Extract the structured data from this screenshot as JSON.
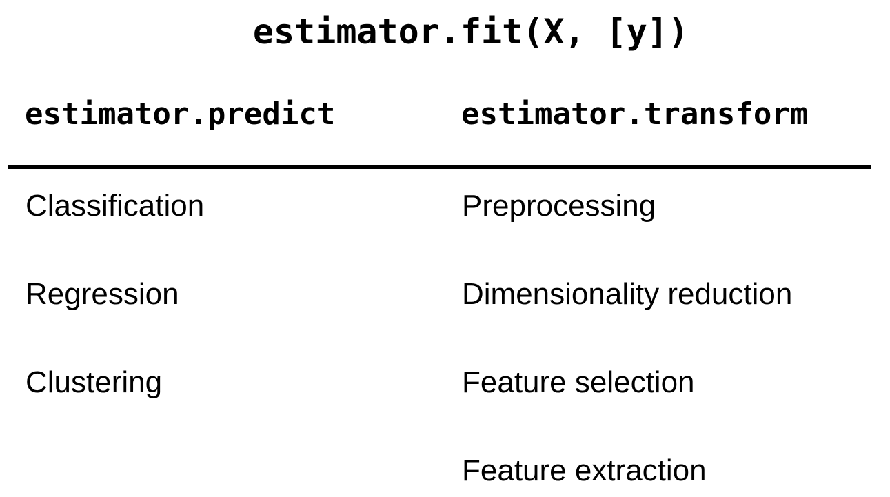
{
  "title": "estimator.fit(X, [y])",
  "columns": [
    {
      "header": "estimator.predict",
      "items": [
        "Classification",
        "Regression",
        "Clustering"
      ]
    },
    {
      "header": "estimator.transform",
      "items": [
        "Preprocessing",
        "Dimensionality reduction",
        "Feature selection",
        "Feature extraction"
      ]
    }
  ]
}
